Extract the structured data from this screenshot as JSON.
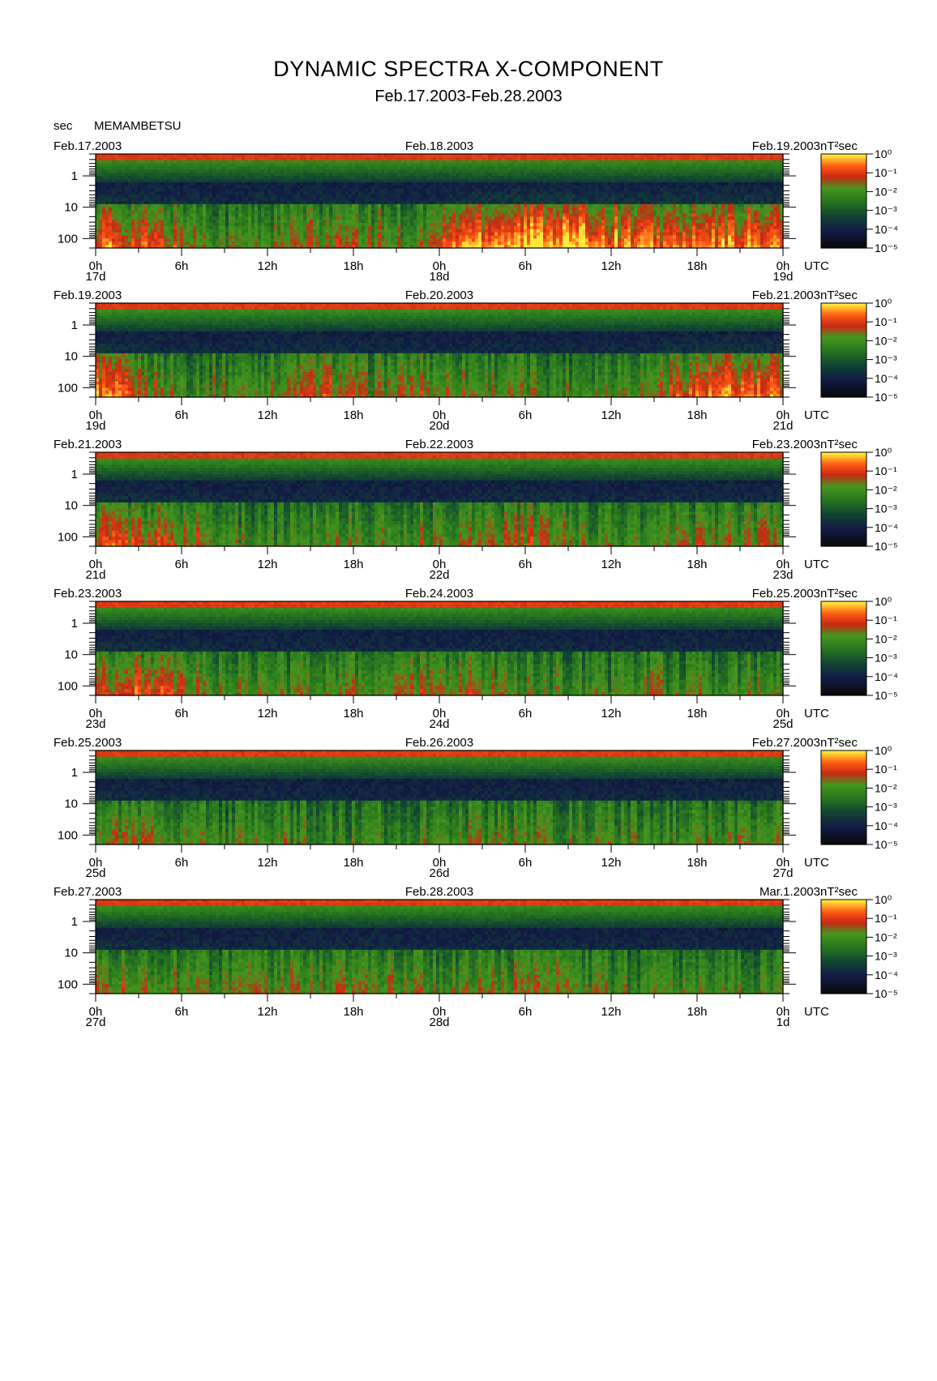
{
  "title": "DYNAMIC SPECTRA X-COMPONENT",
  "subtitle": "Feb.17.2003-Feb.28.2003",
  "station": "MEMAMBETSU",
  "yaxis_unit": "sec",
  "colorbar_unit": "nT²sec",
  "time_zone": "UTC",
  "chart_data": [
    {
      "type": "heatmap",
      "left_date": "Feb.17.2003",
      "center_date": "Feb.18.2003",
      "right_date": "Feb.19.2003",
      "day_labels": [
        "17d",
        "18d",
        "19d"
      ],
      "x_ticks": [
        "0h",
        "6h",
        "12h",
        "18h",
        "0h",
        "6h",
        "12h",
        "18h",
        "0h"
      ],
      "y_ticks": [
        "1",
        "10",
        "100"
      ],
      "ylabel": "sec",
      "y_scale": "log",
      "ylim": [
        0.2,
        200
      ],
      "colorbar_ticks": [
        "10⁰",
        "10⁻¹",
        "10⁻²",
        "10⁻³",
        "10⁻⁴",
        "10⁻⁵"
      ],
      "colorbar_label": "nT²sec",
      "activity": [
        0.8,
        0.7,
        0.55,
        0.4,
        0.45,
        0.55,
        0.5,
        0.45,
        0.9,
        0.95,
        1.0,
        0.9,
        0.8,
        0.75,
        0.85,
        0.8
      ]
    },
    {
      "type": "heatmap",
      "left_date": "Feb.19.2003",
      "center_date": "Feb.20.2003",
      "right_date": "Feb.21.2003",
      "day_labels": [
        "19d",
        "20d",
        "21d"
      ],
      "x_ticks": [
        "0h",
        "6h",
        "12h",
        "18h",
        "0h",
        "6h",
        "12h",
        "18h",
        "0h"
      ],
      "y_ticks": [
        "1",
        "10",
        "100"
      ],
      "ylabel": "sec",
      "y_scale": "log",
      "ylim": [
        0.2,
        200
      ],
      "colorbar_ticks": [
        "10⁰",
        "10⁻¹",
        "10⁻²",
        "10⁻³",
        "10⁻⁴",
        "10⁻⁵"
      ],
      "colorbar_label": "nT²sec",
      "activity": [
        0.85,
        0.55,
        0.4,
        0.45,
        0.5,
        0.65,
        0.45,
        0.55,
        0.5,
        0.45,
        0.4,
        0.45,
        0.5,
        0.75,
        0.8,
        0.7
      ]
    },
    {
      "type": "heatmap",
      "left_date": "Feb.21.2003",
      "center_date": "Feb.22.2003",
      "right_date": "Feb.23.2003",
      "day_labels": [
        "21d",
        "22d",
        "23d"
      ],
      "x_ticks": [
        "0h",
        "6h",
        "12h",
        "18h",
        "0h",
        "6h",
        "12h",
        "18h",
        "0h"
      ],
      "y_ticks": [
        "1",
        "10",
        "100"
      ],
      "ylabel": "sec",
      "y_scale": "log",
      "ylim": [
        0.2,
        200
      ],
      "colorbar_ticks": [
        "10⁰",
        "10⁻¹",
        "10⁻²",
        "10⁻³",
        "10⁻⁴",
        "10⁻⁵"
      ],
      "colorbar_label": "nT²sec",
      "activity": [
        0.7,
        0.65,
        0.55,
        0.4,
        0.35,
        0.5,
        0.4,
        0.45,
        0.5,
        0.55,
        0.55,
        0.4,
        0.35,
        0.5,
        0.45,
        0.6
      ]
    },
    {
      "type": "heatmap",
      "left_date": "Feb.23.2003",
      "center_date": "Feb.24.2003",
      "right_date": "Feb.25.2003",
      "day_labels": [
        "23d",
        "24d",
        "25d"
      ],
      "x_ticks": [
        "0h",
        "6h",
        "12h",
        "18h",
        "0h",
        "6h",
        "12h",
        "18h",
        "0h"
      ],
      "y_ticks": [
        "1",
        "10",
        "100"
      ],
      "ylabel": "sec",
      "y_scale": "log",
      "ylim": [
        0.2,
        200
      ],
      "colorbar_ticks": [
        "10⁰",
        "10⁻¹",
        "10⁻²",
        "10⁻³",
        "10⁻⁴",
        "10⁻⁵"
      ],
      "colorbar_label": "nT²sec",
      "activity": [
        0.65,
        0.7,
        0.5,
        0.4,
        0.4,
        0.5,
        0.45,
        0.5,
        0.55,
        0.45,
        0.4,
        0.35,
        0.45,
        0.4,
        0.4,
        0.5
      ]
    },
    {
      "type": "heatmap",
      "left_date": "Feb.25.2003",
      "center_date": "Feb.26.2003",
      "right_date": "Feb.27.2003",
      "day_labels": [
        "25d",
        "26d",
        "27d"
      ],
      "x_ticks": [
        "0h",
        "6h",
        "12h",
        "18h",
        "0h",
        "6h",
        "12h",
        "18h",
        "0h"
      ],
      "y_ticks": [
        "1",
        "10",
        "100"
      ],
      "ylabel": "sec",
      "y_scale": "log",
      "ylim": [
        0.2,
        200
      ],
      "colorbar_ticks": [
        "10⁰",
        "10⁻¹",
        "10⁻²",
        "10⁻³",
        "10⁻⁴",
        "10⁻⁵"
      ],
      "colorbar_label": "nT²sec",
      "activity": [
        0.55,
        0.5,
        0.45,
        0.35,
        0.4,
        0.35,
        0.3,
        0.4,
        0.45,
        0.45,
        0.4,
        0.4,
        0.4,
        0.35,
        0.45,
        0.55
      ]
    },
    {
      "type": "heatmap",
      "left_date": "Feb.27.2003",
      "center_date": "Feb.28.2003",
      "right_date": "Mar.1.2003",
      "day_labels": [
        "27d",
        "28d",
        "1d"
      ],
      "x_ticks": [
        "0h",
        "6h",
        "12h",
        "18h",
        "0h",
        "6h",
        "12h",
        "18h",
        "0h"
      ],
      "y_ticks": [
        "1",
        "10",
        "100"
      ],
      "ylabel": "sec",
      "y_scale": "log",
      "ylim": [
        0.2,
        200
      ],
      "colorbar_ticks": [
        "10⁰",
        "10⁻¹",
        "10⁻²",
        "10⁻³",
        "10⁻⁴",
        "10⁻⁵"
      ],
      "colorbar_label": "nT²sec",
      "activity": [
        0.6,
        0.5,
        0.45,
        0.4,
        0.45,
        0.45,
        0.5,
        0.45,
        0.45,
        0.5,
        0.45,
        0.4,
        0.35,
        0.4,
        0.35,
        0.4
      ]
    }
  ]
}
